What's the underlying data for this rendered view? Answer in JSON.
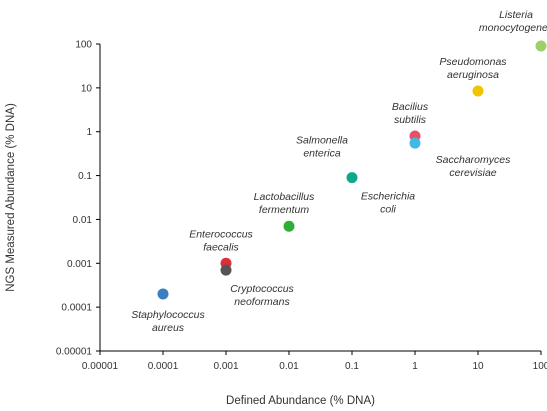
{
  "chart_data": {
    "type": "scatter",
    "title": "",
    "xlabel": "Defined Abundance (% DNA)",
    "ylabel": "NGS Measured Abundance (% DNA)",
    "x_scale": "log",
    "y_scale": "log",
    "xlim": [
      1e-05,
      100
    ],
    "ylim": [
      1e-05,
      100
    ],
    "x_ticks": [
      "0.00001",
      "0.0001",
      "0.001",
      "0.01",
      "0.1",
      "1",
      "10",
      "100"
    ],
    "y_ticks": [
      "0.00001",
      "0.0001",
      "0.001",
      "0.01",
      "0.1",
      "1",
      "10",
      "100"
    ],
    "grid": false,
    "legend": "none",
    "points": [
      {
        "name": [
          "Staphylococcus",
          "aureus"
        ],
        "x": 0.0001,
        "y": 0.0002,
        "color": "#3a7fbf",
        "label_pos": "below"
      },
      {
        "name": [
          "Enterococcus",
          "faecalis"
        ],
        "x": 0.001,
        "y": 0.001,
        "color": "#d9303a",
        "label_pos": "above"
      },
      {
        "name": [
          "Cryptococcus",
          "neoformans"
        ],
        "x": 0.001,
        "y": 0.0007,
        "color": "#555555",
        "label_pos": "below-right"
      },
      {
        "name": [
          "Lactobacillus",
          "fermentum"
        ],
        "x": 0.01,
        "y": 0.007,
        "color": "#2fae3a",
        "label_pos": "above"
      },
      {
        "name": [
          "Salmonella",
          "enterica"
        ],
        "x": 0.1,
        "y": 0.09,
        "color": "#10a88a",
        "label_pos": "above-left"
      },
      {
        "name": [
          "Escherichia",
          "coli"
        ],
        "x": 0.1,
        "y": 0.09,
        "color": "#10a88a",
        "label_pos": "below-right",
        "hidden_marker": true
      },
      {
        "name": [
          "Bacilius",
          "subtilis"
        ],
        "x": 1,
        "y": 0.8,
        "color": "#e8506a",
        "label_pos": "above"
      },
      {
        "name": [
          "Saccharomyces",
          "cerevisiae"
        ],
        "x": 1,
        "y": 0.55,
        "color": "#3fb9e6",
        "label_pos": "right-below"
      },
      {
        "name": [
          "Pseudomonas",
          "aeruginosa"
        ],
        "x": 10,
        "y": 8.5,
        "color": "#f2c300",
        "label_pos": "above"
      },
      {
        "name": [
          "Listeria",
          "monocytogenes"
        ],
        "x": 100,
        "y": 90,
        "color": "#9ecf6a",
        "label_pos": "above-left"
      }
    ]
  }
}
